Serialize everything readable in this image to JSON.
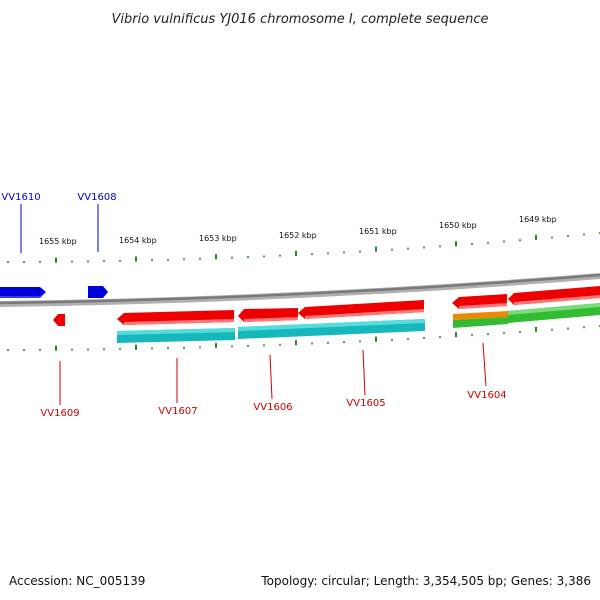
{
  "title": "Vibrio vulnificus YJ016 chromosome I, complete sequence",
  "footer": {
    "accession": "Accession: NC_005139",
    "summary": "Topology: circular; Length: 3,354,505 bp; Genes: 3,386"
  },
  "kbp_labels": [
    "1655 kbp",
    "1654 kbp",
    "1653 kbp",
    "1652 kbp",
    "1651 kbp",
    "1650 kbp",
    "1649 kbp"
  ],
  "genes_forward": [
    "VV1610",
    "VV1608"
  ],
  "genes_reverse": [
    "VV1609",
    "VV1607",
    "VV1606",
    "VV1605",
    "VV1604"
  ],
  "colors": {
    "forward_gene": "#0000dd",
    "reverse_gene": "#ee0000",
    "cds_teal": "#1bbcc0",
    "cds_green": "#33bb33",
    "cds_orange": "#ee8800",
    "backbone": "#888888",
    "ticks": "#228822",
    "label_forward": "#0000cc",
    "label_reverse": "#cc0000"
  }
}
